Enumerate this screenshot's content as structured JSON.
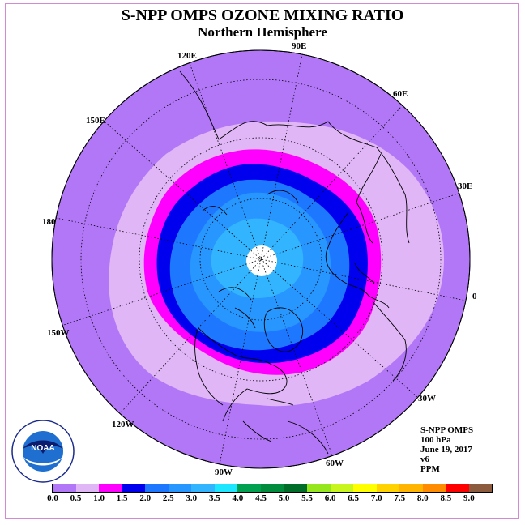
{
  "title": "S-NPP OMPS OZONE MIXING RATIO",
  "subtitle": "Northern Hemisphere",
  "longitude_labels": {
    "e90": "90E",
    "e60": "60E",
    "e30": "30E",
    "e0": "0",
    "w30": "30W",
    "w60": "60W",
    "w90": "90W",
    "w120": "120W",
    "w150": "150W",
    "e180": "180",
    "e150": "150E",
    "e120": "120E"
  },
  "info": {
    "instrument": "S-NPP OMPS",
    "level": "100 hPa",
    "date": "June 19, 2017",
    "version": "v6",
    "units": "PPM"
  },
  "logo": {
    "text": "NOAA",
    "ring_text": "NATIONAL OCEANIC AND ATMOSPHERIC ADMINISTRATION · U.S. DEPARTMENT OF COMMERCE"
  },
  "colorbar": {
    "colors": [
      "#b277f7",
      "#e0b6f7",
      "#ff00ff",
      "#0000ee",
      "#1e78ff",
      "#2896ff",
      "#32b4ff",
      "#1ee6ff",
      "#00a050",
      "#008c3c",
      "#006e28",
      "#96e61e",
      "#c8f51e",
      "#ffff00",
      "#ffd200",
      "#ffb400",
      "#ff8c00",
      "#ff0000",
      "#8c5a3c"
    ],
    "ticks": [
      "0.0",
      "0.5",
      "1.0",
      "1.5",
      "2.0",
      "2.5",
      "3.0",
      "3.5",
      "4.0",
      "4.5",
      "5.0",
      "5.5",
      "6.0",
      "6.5",
      "7.0",
      "7.5",
      "8.0",
      "8.5",
      "9.0"
    ]
  },
  "map_colors": {
    "outer": "#b277f7",
    "band_0_5": "#e0b6f7",
    "band_1_0": "#ff00ff",
    "band_1_5": "#0000ee",
    "band_2_0": "#1e78ff",
    "band_2_5": "#2896ff",
    "band_3_0": "#32b4ff",
    "pole_nodata": "#ffffff"
  }
}
